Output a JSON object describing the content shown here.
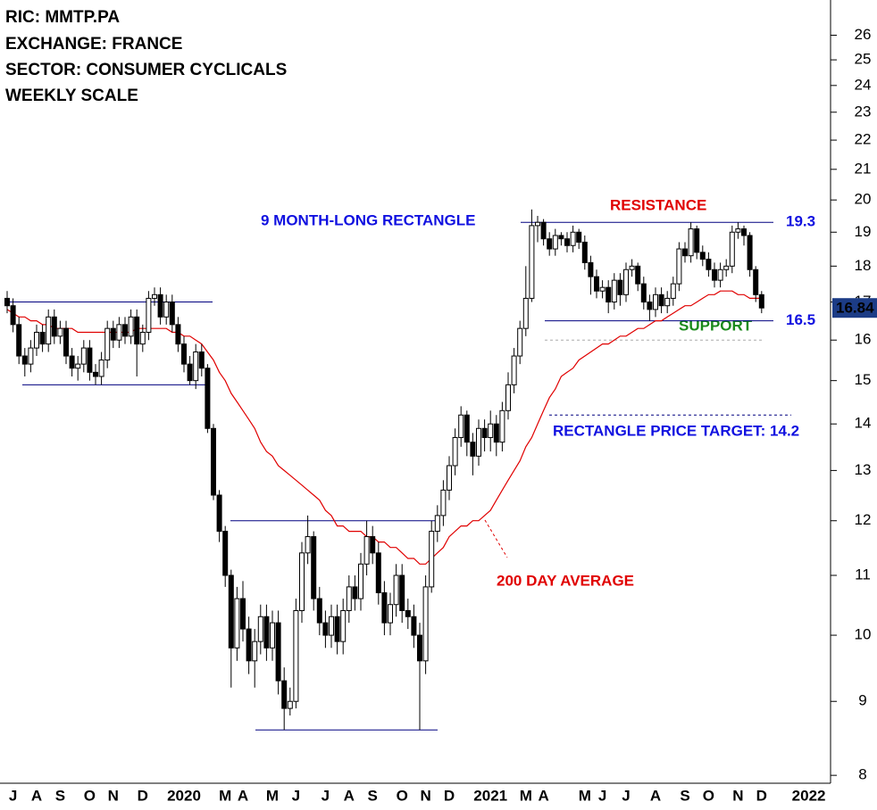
{
  "chart_data": {
    "type": "candlestick",
    "header_lines": [
      "RIC: MMTP.PA",
      "EXCHANGE: FRANCE",
      "SECTOR: CONSUMER CYCLICALS",
      "WEEKLY SCALE"
    ],
    "annotations": [
      "9 MONTH-LONG RECTANGLE",
      "RESISTANCE",
      "SUPPORT",
      "RECTANGLE PRICE TARGET: 14.2",
      "200 DAY AVERAGE"
    ],
    "categories": [
      null,
      "J",
      null,
      null,
      null,
      "A",
      null,
      null,
      null,
      "S",
      null,
      null,
      null,
      null,
      "O",
      null,
      null,
      null,
      "N",
      null,
      null,
      null,
      null,
      "D",
      null,
      null,
      null,
      null,
      null,
      null,
      "2020",
      null,
      null,
      null,
      null,
      null,
      null,
      "M",
      null,
      null,
      "A",
      null,
      null,
      null,
      null,
      "M",
      null,
      null,
      null,
      "J",
      null,
      null,
      null,
      null,
      "J",
      null,
      null,
      null,
      "A",
      null,
      null,
      null,
      "S",
      null,
      null,
      null,
      null,
      "O",
      null,
      null,
      null,
      "N",
      null,
      null,
      null,
      "D",
      null,
      null,
      null,
      null,
      null,
      null,
      "2021",
      null,
      null,
      null,
      null,
      null,
      "M",
      null,
      null,
      "A",
      null,
      null,
      null,
      null,
      null,
      null,
      "M",
      null,
      null,
      "J",
      null,
      null,
      null,
      "J",
      null,
      null,
      null,
      null,
      "A",
      null,
      null,
      null,
      null,
      "S",
      null,
      null,
      null,
      "O",
      null,
      null,
      null,
      null,
      "N",
      null,
      null,
      null,
      "D",
      null,
      null,
      null,
      null,
      null,
      null,
      null,
      "2022"
    ],
    "open": [
      17.1,
      16.9,
      16.4,
      15.6,
      15.4,
      15.8,
      16.2,
      15.9,
      16.6,
      16.1,
      16.3,
      15.6,
      15.3,
      15.4,
      15.8,
      15.2,
      15.1,
      15.5,
      16.3,
      16.0,
      16.4,
      16.1,
      16.6,
      15.9,
      16.2,
      17.1,
      17.2,
      16.6,
      17.0,
      16.4,
      15.9,
      15.4,
      15.0,
      15.7,
      15.3,
      13.9,
      12.5,
      11.8,
      11.0,
      9.8,
      10.6,
      10.1,
      9.6,
      9.9,
      10.3,
      9.8,
      10.2,
      9.3,
      8.9,
      9.0,
      10.4,
      11.4,
      11.7,
      10.6,
      10.2,
      10.0,
      10.3,
      9.9,
      10.4,
      10.8,
      10.6,
      11.2,
      11.7,
      11.4,
      10.7,
      10.2,
      10.5,
      11.0,
      10.4,
      10.3,
      10.0,
      9.6,
      10.8,
      11.8,
      12.1,
      12.6,
      13.1,
      13.7,
      14.2,
      13.6,
      13.3,
      13.9,
      13.7,
      14.0,
      13.6,
      14.3,
      14.9,
      15.6,
      16.3,
      17.1,
      19.2,
      19.3,
      18.8,
      18.5,
      18.9,
      18.8,
      18.6,
      19.0,
      18.7,
      18.1,
      17.7,
      17.3,
      17.4,
      17.0,
      17.6,
      17.2,
      17.9,
      18.0,
      17.5,
      17.0,
      16.8,
      17.2,
      16.9,
      17.1,
      17.5,
      18.5,
      18.3,
      19.1,
      18.4,
      18.2,
      17.9,
      17.6,
      17.9,
      18.0,
      19.0,
      19.1,
      18.9,
      17.9,
      17.2,
      null,
      null,
      null,
      null,
      null,
      null,
      null,
      null
    ],
    "high": [
      17.3,
      17.1,
      16.6,
      15.8,
      16.0,
      16.4,
      16.4,
      16.8,
      16.8,
      16.5,
      16.5,
      15.8,
      15.6,
      16.0,
      16.0,
      15.4,
      15.7,
      16.5,
      16.5,
      16.6,
      16.6,
      16.8,
      16.8,
      16.4,
      17.3,
      17.4,
      17.4,
      17.2,
      17.2,
      16.6,
      16.1,
      15.6,
      15.9,
      15.9,
      15.4,
      14.0,
      12.6,
      11.9,
      11.1,
      10.8,
      10.9,
      10.3,
      10.1,
      10.5,
      10.5,
      10.4,
      10.4,
      9.5,
      9.2,
      10.6,
      11.6,
      12.1,
      11.8,
      10.8,
      10.4,
      10.5,
      10.5,
      10.6,
      11.0,
      11.0,
      11.4,
      12.0,
      11.9,
      11.6,
      10.9,
      10.7,
      11.2,
      11.2,
      10.6,
      10.5,
      10.2,
      11.0,
      12.0,
      12.3,
      12.8,
      13.3,
      13.9,
      14.4,
      14.3,
      13.8,
      14.1,
      14.1,
      14.3,
      14.2,
      14.5,
      15.2,
      15.8,
      16.5,
      18.0,
      19.7,
      19.5,
      19.4,
      19.0,
      19.1,
      19.0,
      19.0,
      19.2,
      19.1,
      18.9,
      18.3,
      17.9,
      17.6,
      17.6,
      17.8,
      17.8,
      18.1,
      18.2,
      18.1,
      17.7,
      17.2,
      17.4,
      17.4,
      17.3,
      17.7,
      18.7,
      18.7,
      19.3,
      19.2,
      18.6,
      18.4,
      18.1,
      18.1,
      18.2,
      19.2,
      19.3,
      19.2,
      19.0,
      18.0,
      17.3,
      null,
      null,
      null,
      null,
      null,
      null,
      null,
      null
    ],
    "low": [
      16.7,
      16.2,
      15.4,
      15.1,
      15.2,
      15.6,
      15.7,
      15.7,
      15.9,
      15.9,
      15.4,
      15.1,
      15.0,
      15.2,
      15.0,
      14.9,
      14.9,
      15.3,
      15.8,
      15.8,
      15.9,
      15.9,
      15.1,
      15.7,
      16.0,
      16.9,
      16.4,
      16.4,
      16.2,
      15.7,
      15.2,
      14.9,
      14.8,
      15.1,
      13.8,
      12.4,
      11.6,
      10.8,
      9.2,
      9.6,
      9.9,
      9.4,
      9.2,
      9.7,
      9.6,
      9.6,
      9.1,
      8.6,
      8.8,
      8.9,
      10.2,
      11.2,
      10.4,
      10.0,
      9.8,
      9.8,
      9.7,
      9.7,
      10.2,
      10.4,
      10.4,
      11.0,
      11.2,
      10.5,
      10.0,
      10.0,
      10.3,
      10.2,
      10.1,
      9.8,
      8.6,
      9.4,
      10.7,
      11.6,
      11.9,
      12.4,
      12.9,
      13.5,
      13.3,
      12.9,
      13.1,
      13.4,
      13.4,
      13.3,
      13.4,
      14.1,
      14.7,
      15.4,
      16.1,
      17.0,
      18.7,
      18.6,
      18.3,
      18.3,
      18.6,
      18.4,
      18.4,
      18.5,
      17.9,
      17.2,
      17.1,
      17.1,
      16.7,
      16.8,
      16.9,
      17.0,
      17.7,
      17.3,
      16.8,
      16.5,
      16.6,
      16.7,
      16.7,
      16.9,
      17.3,
      18.1,
      18.1,
      18.2,
      18.0,
      17.7,
      17.4,
      17.4,
      17.7,
      17.8,
      18.8,
      18.6,
      17.7,
      17.0,
      16.7,
      null,
      null,
      null,
      null,
      null,
      null,
      null,
      null
    ],
    "close": [
      16.9,
      16.4,
      15.6,
      15.4,
      15.8,
      16.2,
      15.9,
      16.6,
      16.1,
      16.3,
      15.6,
      15.3,
      15.4,
      15.8,
      15.2,
      15.1,
      15.5,
      16.3,
      16.0,
      16.4,
      16.1,
      16.6,
      15.9,
      16.2,
      17.1,
      17.2,
      16.6,
      17.0,
      16.4,
      15.9,
      15.4,
      15.0,
      15.7,
      15.3,
      13.9,
      12.5,
      11.8,
      11.0,
      9.8,
      10.6,
      10.1,
      9.6,
      9.9,
      10.3,
      9.8,
      10.2,
      9.3,
      8.9,
      9.0,
      10.4,
      11.4,
      11.7,
      10.6,
      10.2,
      10.0,
      10.3,
      9.9,
      10.4,
      10.8,
      10.6,
      11.2,
      11.7,
      11.4,
      10.7,
      10.2,
      10.5,
      11.0,
      10.4,
      10.3,
      10.0,
      9.6,
      10.8,
      11.8,
      12.1,
      12.6,
      13.1,
      13.7,
      14.2,
      13.6,
      13.3,
      13.9,
      13.7,
      14.0,
      13.6,
      14.3,
      14.9,
      15.6,
      16.3,
      17.1,
      19.2,
      19.3,
      18.8,
      18.5,
      18.9,
      18.8,
      18.6,
      19.0,
      18.7,
      18.1,
      17.7,
      17.3,
      17.4,
      17.0,
      17.6,
      17.2,
      17.9,
      18.0,
      17.5,
      17.0,
      16.8,
      17.2,
      16.9,
      17.1,
      17.5,
      18.5,
      18.3,
      19.1,
      18.4,
      18.2,
      17.9,
      17.6,
      17.9,
      18.0,
      19.0,
      19.1,
      18.9,
      17.9,
      17.2,
      16.84,
      null,
      null,
      null,
      null,
      null,
      null,
      null,
      null
    ],
    "moving_average": {
      "color": "#e00000",
      "values": [
        16.8,
        16.7,
        16.6,
        16.6,
        16.5,
        16.5,
        16.4,
        16.4,
        16.3,
        16.3,
        16.3,
        16.3,
        16.2,
        16.2,
        16.2,
        16.2,
        16.2,
        16.2,
        16.2,
        16.2,
        16.2,
        16.2,
        16.3,
        16.3,
        16.3,
        16.3,
        16.3,
        16.3,
        16.2,
        16.2,
        16.1,
        16.1,
        16.0,
        15.9,
        15.7,
        15.5,
        15.2,
        15.0,
        14.7,
        14.5,
        14.3,
        14.1,
        13.9,
        13.6,
        13.4,
        13.3,
        13.1,
        13.0,
        12.9,
        12.8,
        12.7,
        12.6,
        12.5,
        12.4,
        12.2,
        12.1,
        11.9,
        11.9,
        11.8,
        11.8,
        11.8,
        11.7,
        11.7,
        11.6,
        11.6,
        11.5,
        11.5,
        11.4,
        11.3,
        11.3,
        11.2,
        11.2,
        11.3,
        11.4,
        11.5,
        11.7,
        11.8,
        11.9,
        11.9,
        12.0,
        12.0,
        12.1,
        12.2,
        12.4,
        12.6,
        12.8,
        13.0,
        13.2,
        13.5,
        13.7,
        14.0,
        14.3,
        14.6,
        14.8,
        15.1,
        15.2,
        15.3,
        15.5,
        15.6,
        15.7,
        15.8,
        15.9,
        15.9,
        16.0,
        16.1,
        16.1,
        16.2,
        16.3,
        16.3,
        16.4,
        16.5,
        16.5,
        16.6,
        16.7,
        16.8,
        16.9,
        16.9,
        17.0,
        17.1,
        17.2,
        17.2,
        17.3,
        17.3,
        17.3,
        17.2,
        17.2,
        17.1,
        17.1,
        17.1,
        null,
        null,
        null,
        null,
        null,
        null,
        null,
        null
      ]
    },
    "levels": [
      19.3,
      16.5,
      14.2,
      16.0,
      17.0,
      14.9,
      12.0,
      8.6
    ],
    "ylim": [
      7.9,
      27.5
    ],
    "yticks": [
      8,
      9,
      10,
      11,
      12,
      13,
      14,
      15,
      16,
      17,
      18,
      19,
      20,
      21,
      22,
      23,
      24,
      25,
      26
    ],
    "log_scale": true,
    "up_color": "#ffffff",
    "down_color": "#000000",
    "last_price_color": "#1c3c86"
  }
}
